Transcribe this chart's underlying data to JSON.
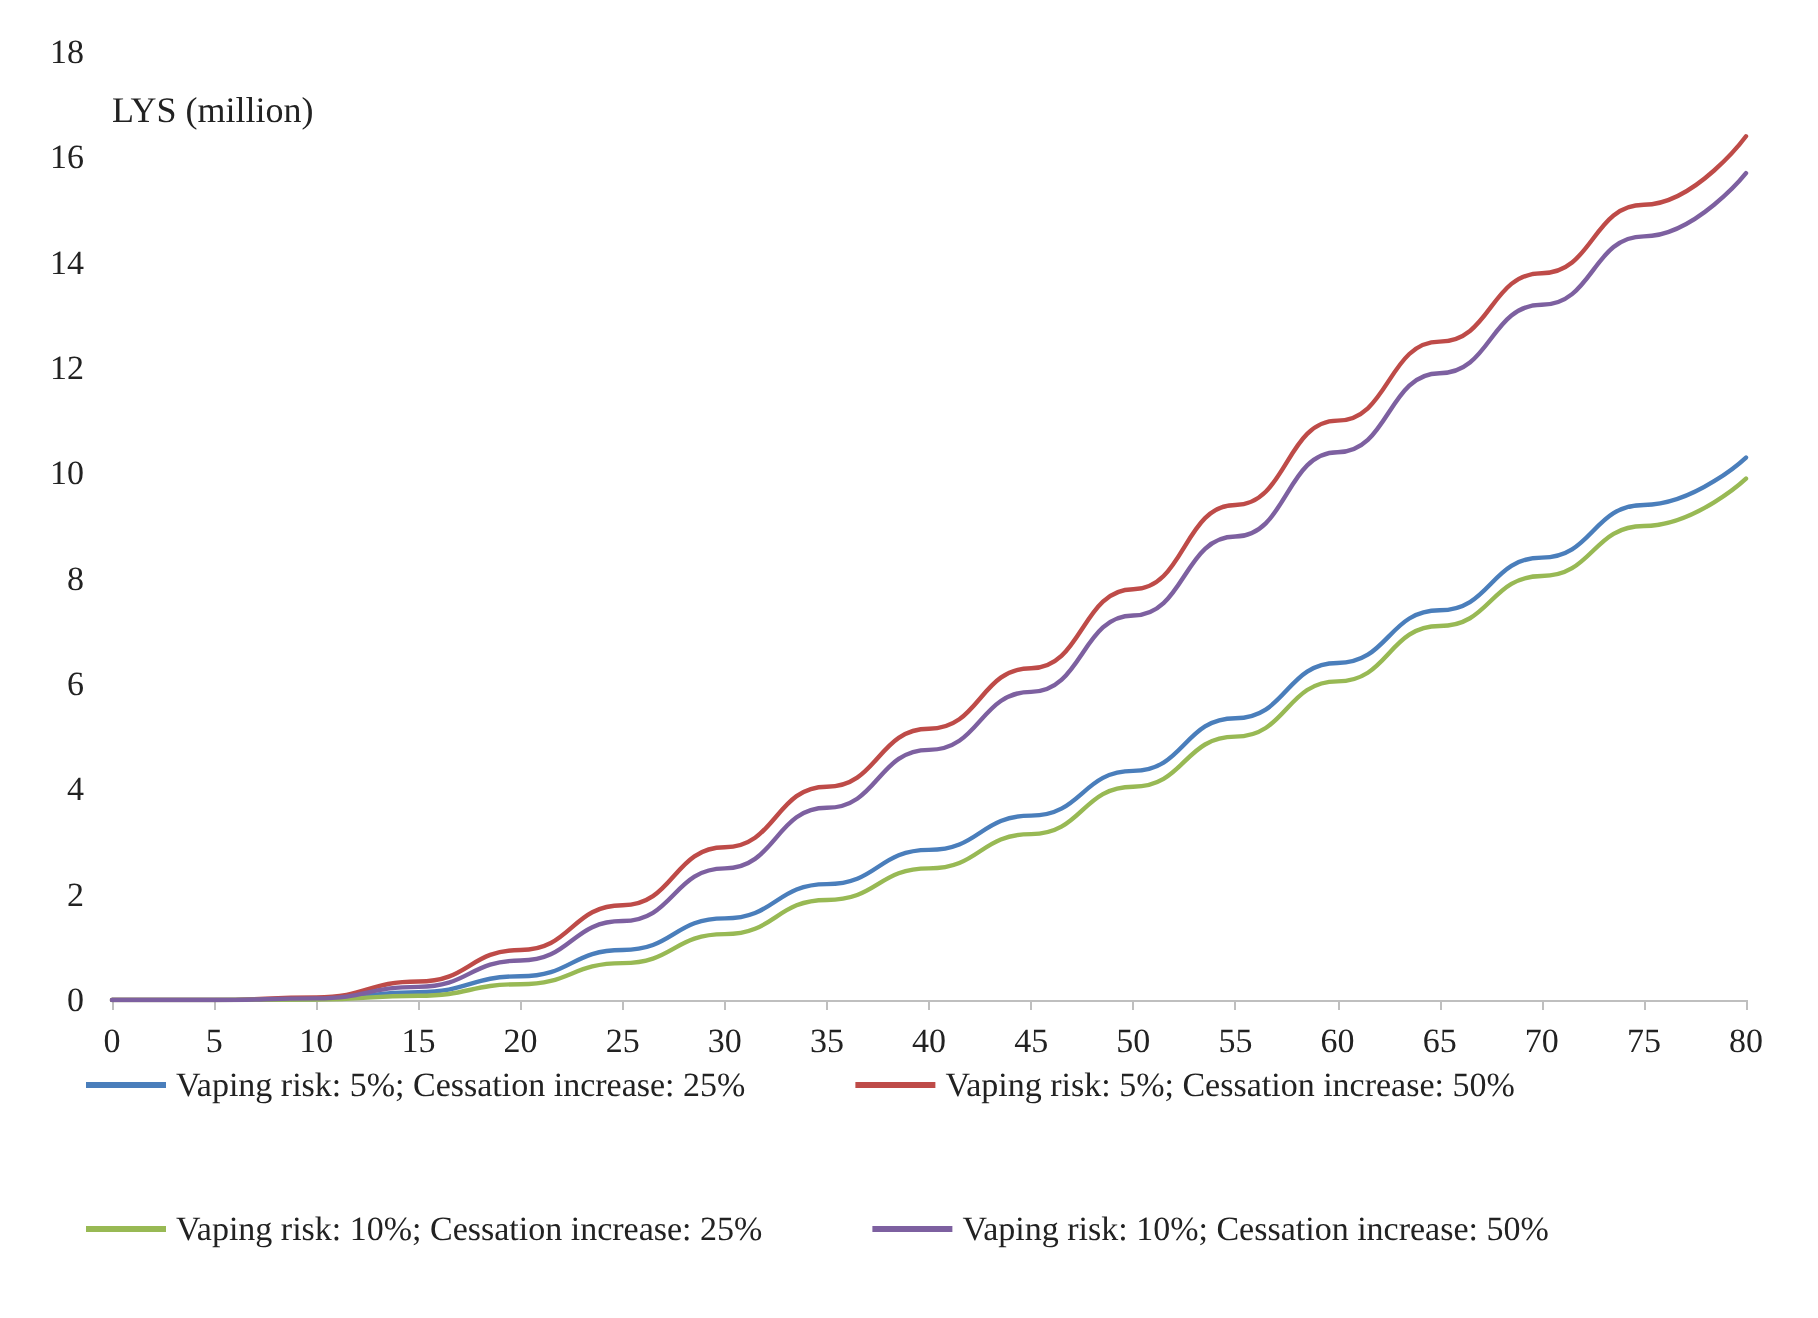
{
  "chart_data": {
    "type": "line",
    "ylabel": "LYS (million)",
    "x": [
      0,
      5,
      10,
      15,
      20,
      25,
      30,
      35,
      40,
      45,
      50,
      55,
      60,
      65,
      70,
      75,
      80
    ],
    "series": [
      {
        "name": "Vaping risk: 5%; Cessation increase: 25%",
        "color": "#4a7ebb",
        "values": [
          0,
          0,
          0.02,
          0.15,
          0.45,
          0.95,
          1.55,
          2.2,
          2.85,
          3.5,
          4.35,
          5.35,
          6.4,
          7.4,
          8.4,
          9.4,
          10.3
        ]
      },
      {
        "name": "Vaping risk: 5%; Cessation increase: 50%",
        "color": "#be4b48",
        "values": [
          0,
          0,
          0.05,
          0.35,
          0.95,
          1.8,
          2.9,
          4.05,
          5.15,
          6.3,
          7.8,
          9.4,
          11.0,
          12.5,
          13.8,
          15.1,
          16.4
        ]
      },
      {
        "name": "Vaping risk: 10%; Cessation increase: 25%",
        "color": "#98b954",
        "values": [
          0,
          0,
          0.01,
          0.08,
          0.3,
          0.7,
          1.25,
          1.9,
          2.5,
          3.15,
          4.05,
          5.0,
          6.05,
          7.1,
          8.05,
          9.0,
          9.9
        ]
      },
      {
        "name": "Vaping risk: 10%; Cessation increase: 50%",
        "color": "#7d60a0",
        "values": [
          0,
          0,
          0.03,
          0.25,
          0.75,
          1.5,
          2.5,
          3.65,
          4.75,
          5.85,
          7.3,
          8.8,
          10.4,
          11.9,
          13.2,
          14.5,
          15.7
        ]
      }
    ],
    "xlim": [
      0,
      80
    ],
    "xticks": [
      0,
      5,
      10,
      15,
      20,
      25,
      30,
      35,
      40,
      45,
      50,
      55,
      60,
      65,
      70,
      75,
      80
    ],
    "ylim": [
      0,
      18
    ],
    "yticks": [
      0,
      2,
      4,
      6,
      8,
      10,
      12,
      14,
      16,
      18
    ],
    "grid": false,
    "legend": "bottom",
    "marker": "none",
    "line_style": "solid"
  }
}
